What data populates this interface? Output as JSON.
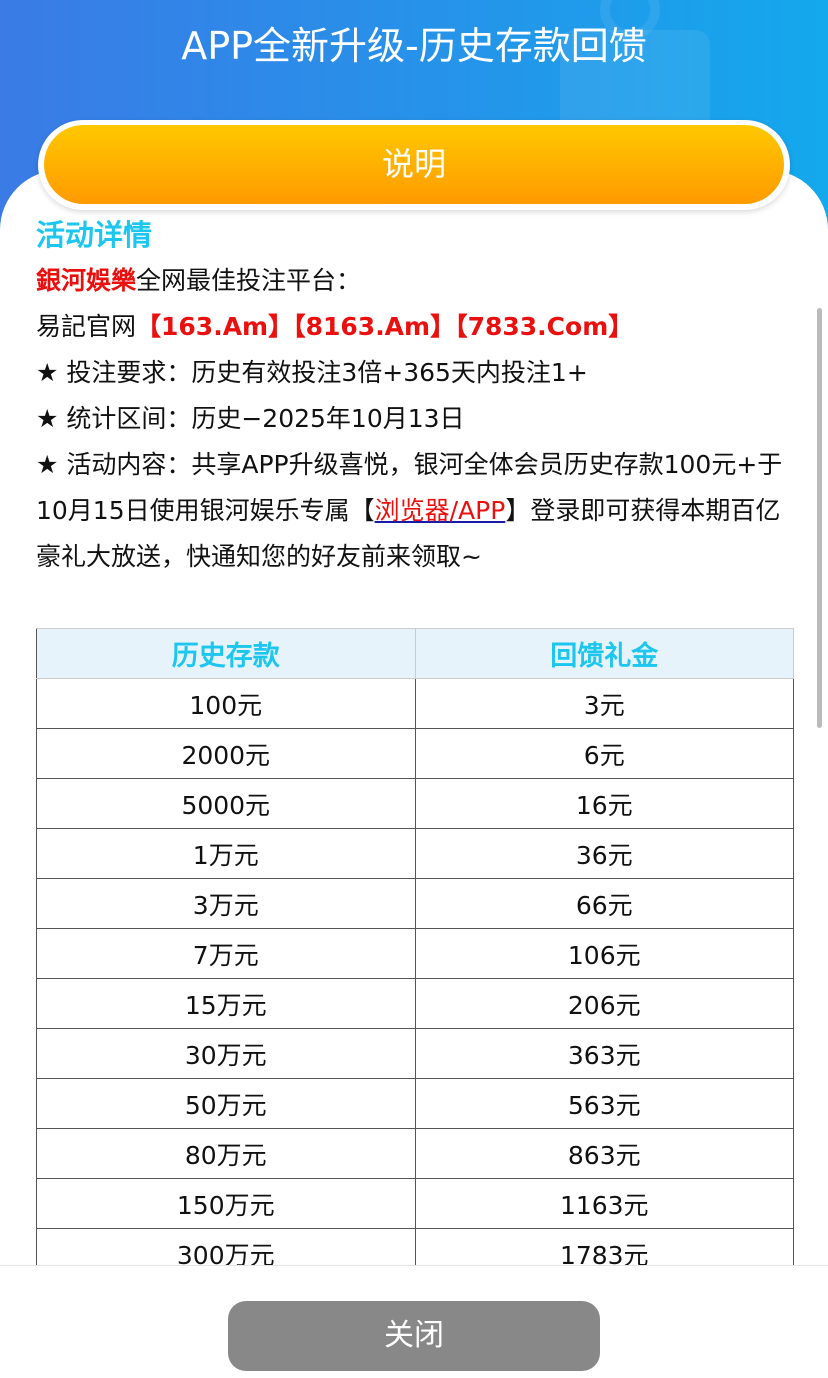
{
  "header": {
    "title": "APP全新升级-历史存款回馈"
  },
  "tab": {
    "label": "说明"
  },
  "details": {
    "heading": "活动详情",
    "brand": "銀河娛樂",
    "brand_suffix": "全网最佳投注平台：",
    "site_prefix": "易記官网",
    "sites": [
      "【163.Am】",
      "【8163.Am】",
      "【7833.Com】"
    ],
    "req_label": "★ 投注要求：",
    "req_value": "历史有效投注3倍+365天内投注1+",
    "period_label": "★ 统计区间：",
    "period_value": "历史−2025年10月13日",
    "content_label": "★ 活动内容：",
    "content_part1": "共享APP升级喜悦，银河全体会员历史存款100元+于10月15日使用银河娱乐专属【",
    "content_link": "浏览器/APP",
    "content_part2": "】登录即可获得本期百亿豪礼大放送，快通知您的好友前来领取~"
  },
  "table": {
    "headers": [
      "历史存款",
      "回馈礼金"
    ],
    "rows": [
      [
        "100元",
        "3元"
      ],
      [
        "2000元",
        "6元"
      ],
      [
        "5000元",
        "16元"
      ],
      [
        "1万元",
        "36元"
      ],
      [
        "3万元",
        "66元"
      ],
      [
        "7万元",
        "106元"
      ],
      [
        "15万元",
        "206元"
      ],
      [
        "30万元",
        "363元"
      ],
      [
        "50万元",
        "563元"
      ],
      [
        "80万元",
        "863元"
      ],
      [
        "150万元",
        "1163元"
      ],
      [
        "300万元",
        "1783元"
      ]
    ]
  },
  "footer": {
    "close_label": "关闭"
  },
  "colors": {
    "accent": "#1cc6ee",
    "red": "#e8110f",
    "header_start": "#3a7be6",
    "header_end": "#14a8ec",
    "button_top": "#ffc800",
    "button_bottom": "#ff9a00"
  }
}
